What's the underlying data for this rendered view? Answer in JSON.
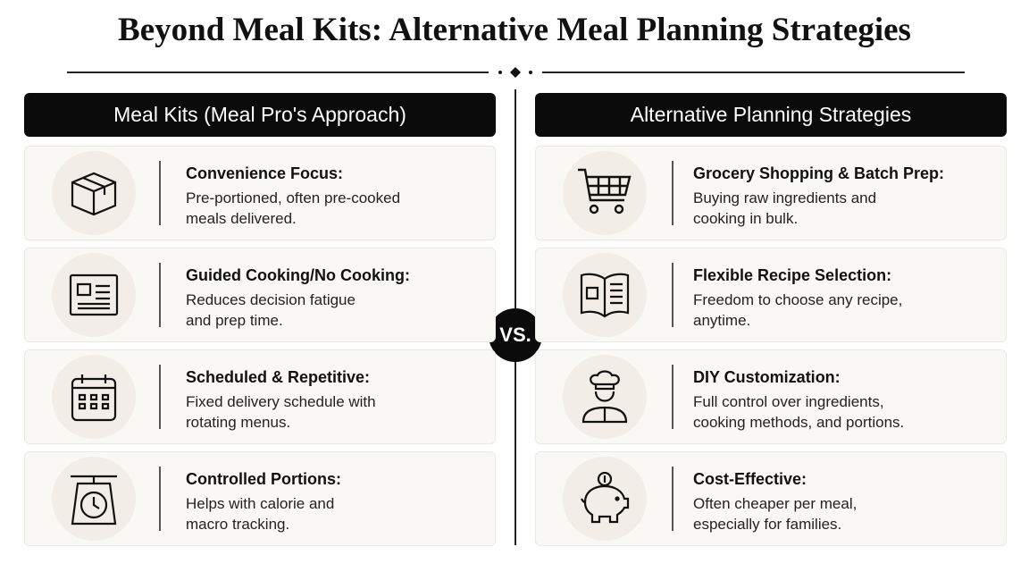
{
  "title": "Beyond Meal Kits: Alternative Meal Planning Strategies",
  "left": {
    "header": "Meal Kits (Meal Pro's Approach)",
    "items": [
      {
        "title": "Convenience Focus:",
        "text": "Pre-portioned, often pre-cooked meals delivered."
      },
      {
        "title": "Guided Cooking/No Cooking:",
        "text": "Reduces decision fatigue and prep time."
      },
      {
        "title": "Scheduled & Repetitive:",
        "text": "Fixed delivery schedule with rotating menus."
      },
      {
        "title": "Controlled Portions:",
        "text": "Helps with calorie and macro tracking."
      }
    ]
  },
  "vs": "VS.",
  "right": {
    "header": "Alternative Planning Strategies",
    "items": [
      {
        "title": "Grocery Shopping & Batch Prep:",
        "text": "Buying raw ingredients and cooking in bulk."
      },
      {
        "title": "Flexible Recipe Selection:",
        "text": "Freedom to choose any recipe, anytime."
      },
      {
        "title": "DIY Customization:",
        "text": "Full control over ingredients, cooking methods, and portions."
      },
      {
        "title": "Cost-Effective:",
        "text": "Often cheaper per meal, especially for families."
      }
    ]
  }
}
